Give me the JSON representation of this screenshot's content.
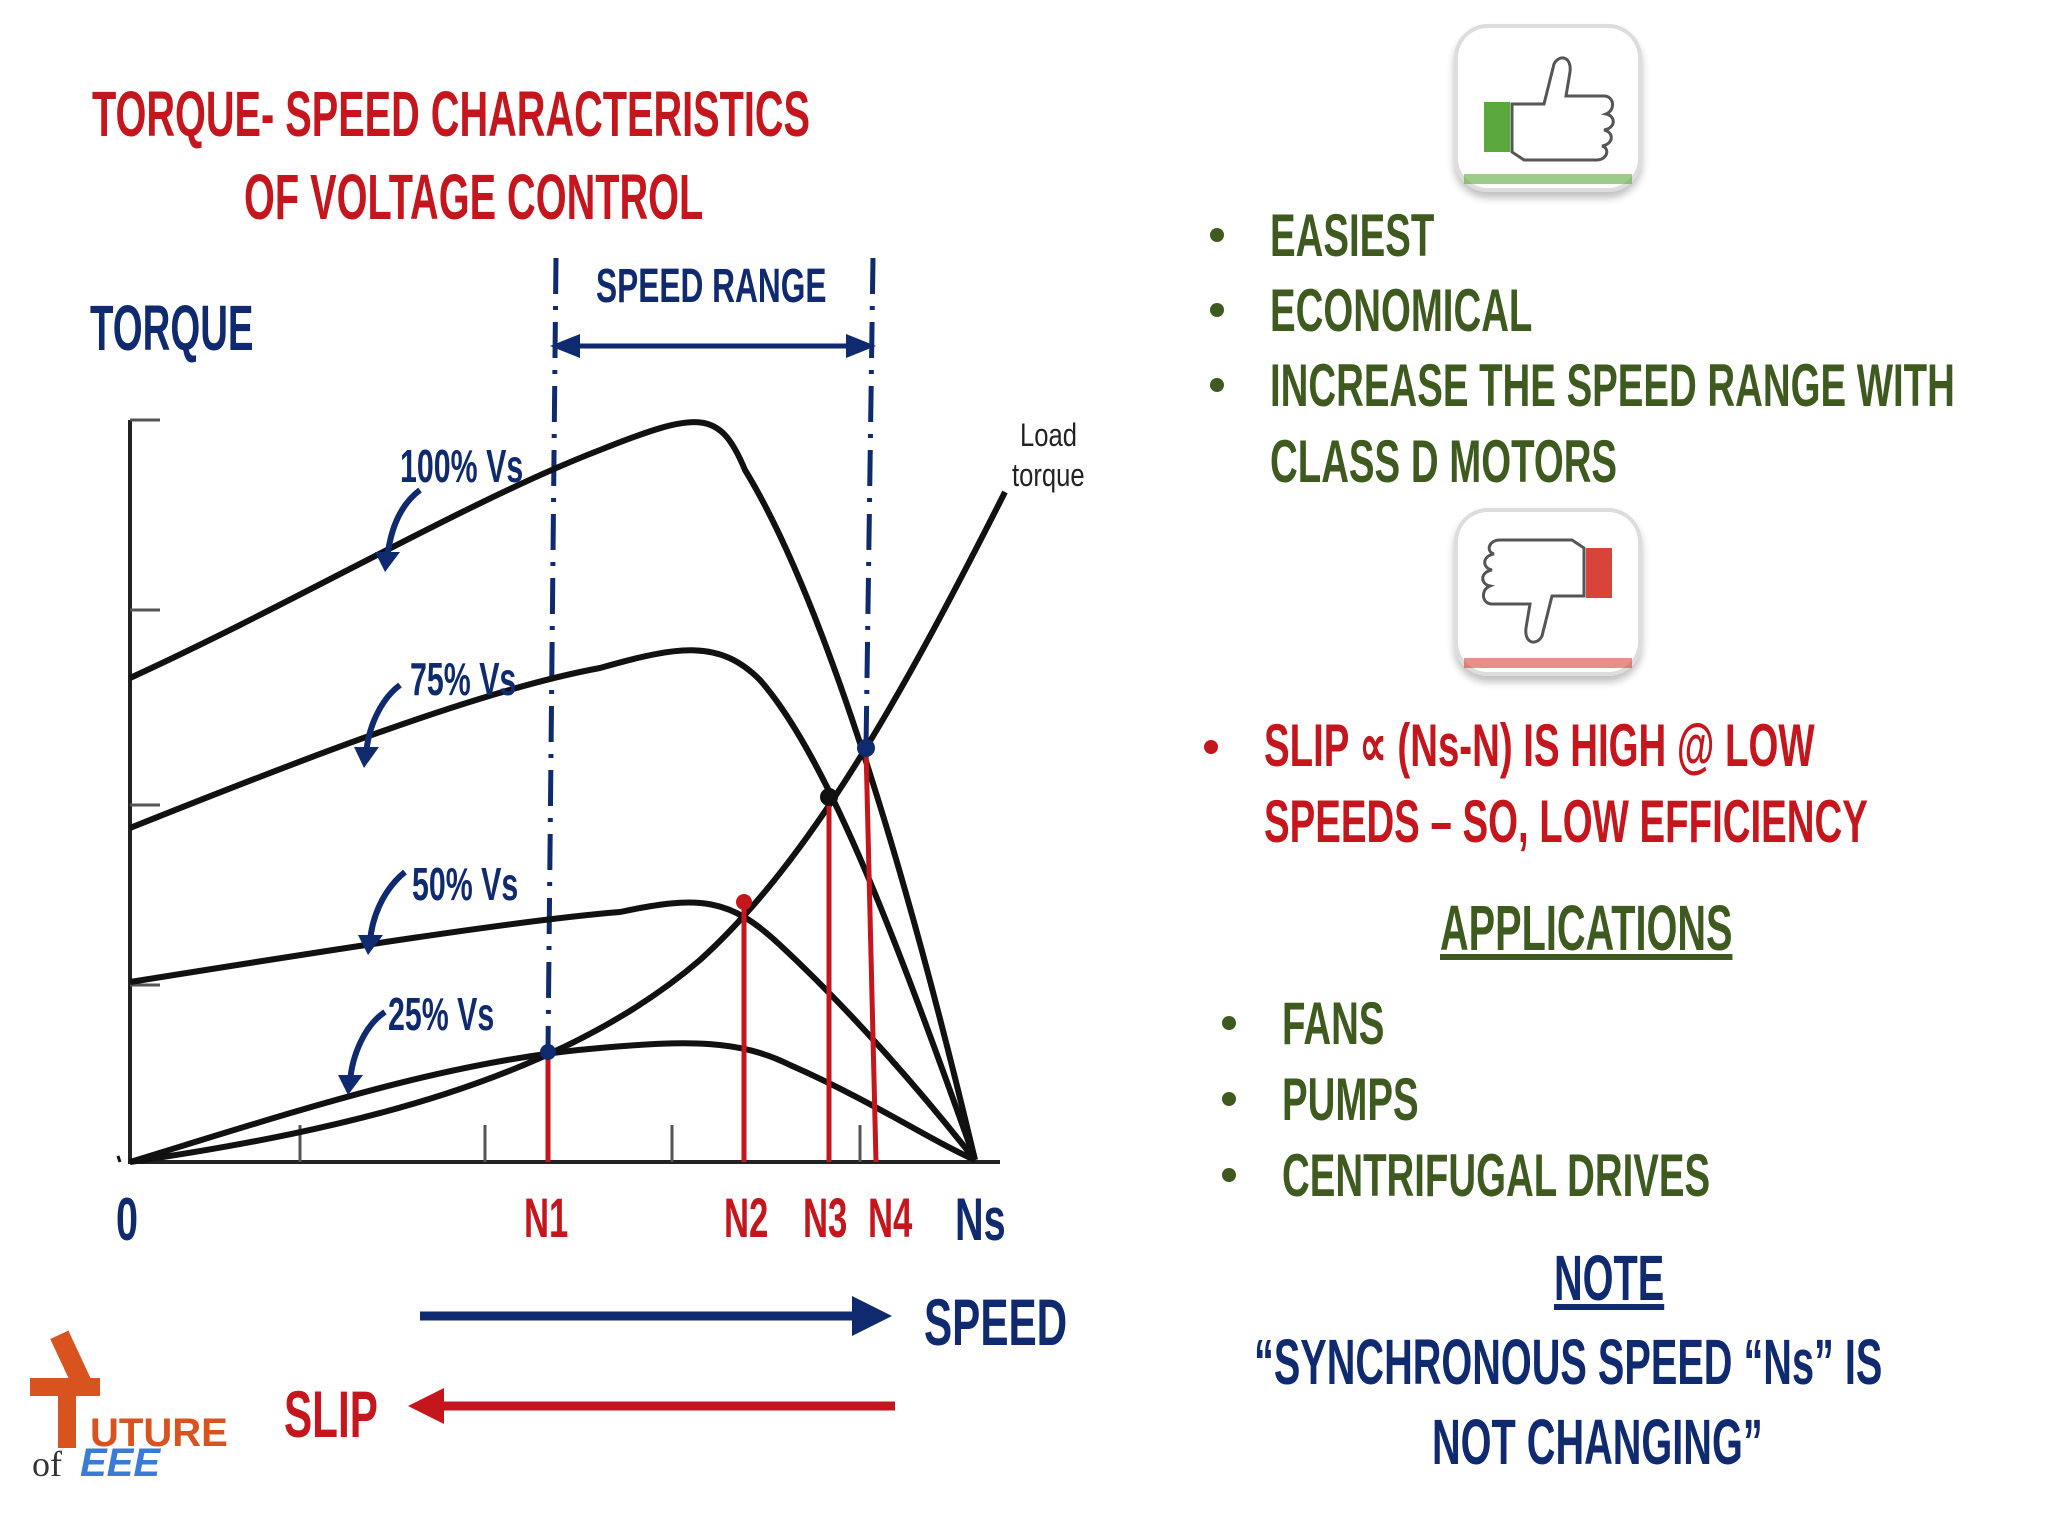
{
  "title": {
    "line1": "TORQUE- SPEED CHARACTERISTICS",
    "line2": "OF VOLTAGE CONTROL"
  },
  "axis": {
    "y_label": "TORQUE",
    "origin": "0",
    "ticks": [
      "N1",
      "N2",
      "N3",
      "N4",
      "Ns"
    ],
    "speed_label": "SPEED",
    "slip_label": "SLIP"
  },
  "speed_range_label": "SPEED RANGE",
  "curves": [
    {
      "label": "100% Vs"
    },
    {
      "label": "75% Vs"
    },
    {
      "label": "50% Vs"
    },
    {
      "label": "25% Vs"
    }
  ],
  "load_torque_label": [
    "Load",
    "torque"
  ],
  "advantages": [
    "EASIEST",
    "ECONOMICAL",
    "INCREASE THE SPEED RANGE WITH",
    "CLASS D MOTORS"
  ],
  "disadvantages": [
    "SLIP ∝ (Ns-N) IS HIGH @ LOW",
    "SPEEDS – SO, LOW EFFICIENCY"
  ],
  "applications": {
    "heading": "APPLICATIONS",
    "items": [
      "FANS",
      "PUMPS",
      "CENTRIFUGAL DRIVES"
    ]
  },
  "note": {
    "heading": "NOTE",
    "line1": "“SYNCHRONOUS SPEED “Ns” IS",
    "line2": "NOT CHANGING”"
  },
  "logo": {
    "line1": "UTURE",
    "line2": "of",
    "line3": "EEE"
  },
  "colors": {
    "title_red": "#c4161c",
    "navy": "#0f2a6e",
    "green": "#3e5a1f",
    "thumb_up": "#5aa83c",
    "thumb_down": "#d9443a"
  }
}
